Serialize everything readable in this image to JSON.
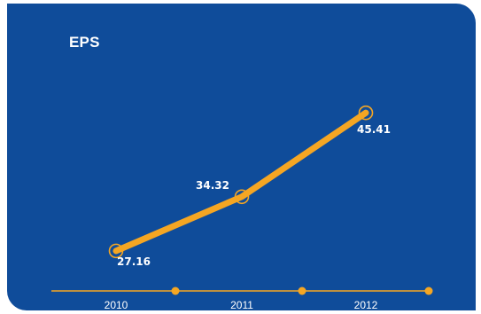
{
  "chart_data": {
    "type": "line",
    "title": "EPS",
    "categories": [
      "2010",
      "2011",
      "2012"
    ],
    "series": [
      {
        "values": [
          27.16,
          34.32,
          45.41
        ]
      }
    ],
    "data_labels": [
      "27.16",
      "34.32",
      "45.41"
    ],
    "xlabel": "",
    "ylabel": "",
    "ylim": [
      0,
      60
    ],
    "grid": false,
    "legend": "none",
    "line_color": "#f5a623",
    "background_color": "#0f4c9a"
  }
}
